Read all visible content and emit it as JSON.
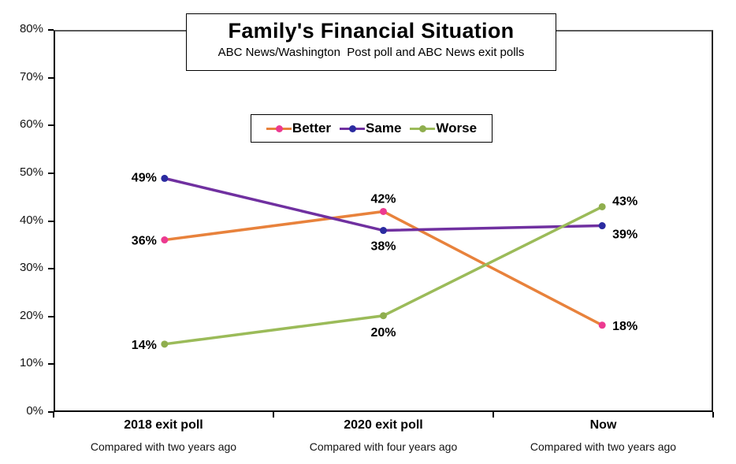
{
  "title": "Family's Financial Situation",
  "subtitle": "ABC News/Washington  Post poll and ABC News exit polls",
  "chart_data": {
    "type": "line",
    "categories": [
      {
        "label": "2018 exit poll",
        "sublabel": "Compared with two years ago"
      },
      {
        "label": "2020 exit poll",
        "sublabel": "Compared with four years ago"
      },
      {
        "label": "Now",
        "sublabel": "Compared with two years ago"
      }
    ],
    "series": [
      {
        "name": "Better",
        "values": [
          36,
          42,
          18
        ],
        "line_color": "#E8823C",
        "marker_color": "#EC3A90",
        "label_pos": [
          "left",
          "above",
          "right"
        ],
        "label_dy": [
          0,
          0,
          0
        ]
      },
      {
        "name": "Same",
        "values": [
          49,
          38,
          39
        ],
        "line_color": "#7030A0",
        "marker_color": "#2B2BA0",
        "label_pos": [
          "left",
          "below",
          "right"
        ],
        "label_dy": [
          -2,
          0,
          10
        ]
      },
      {
        "name": "Worse",
        "values": [
          14,
          20,
          43
        ],
        "line_color": "#9BBB59",
        "marker_color": "#8FAE4E",
        "label_pos": [
          "left",
          "below",
          "right"
        ],
        "label_dy": [
          0,
          1,
          -8
        ]
      }
    ],
    "ylim": [
      0,
      80
    ],
    "yticks": [
      "0%",
      "10%",
      "20%",
      "30%",
      "40%",
      "50%",
      "60%",
      "70%",
      "80%"
    ],
    "label_suffix": "%",
    "grid": false,
    "legend_position": "top-center"
  }
}
